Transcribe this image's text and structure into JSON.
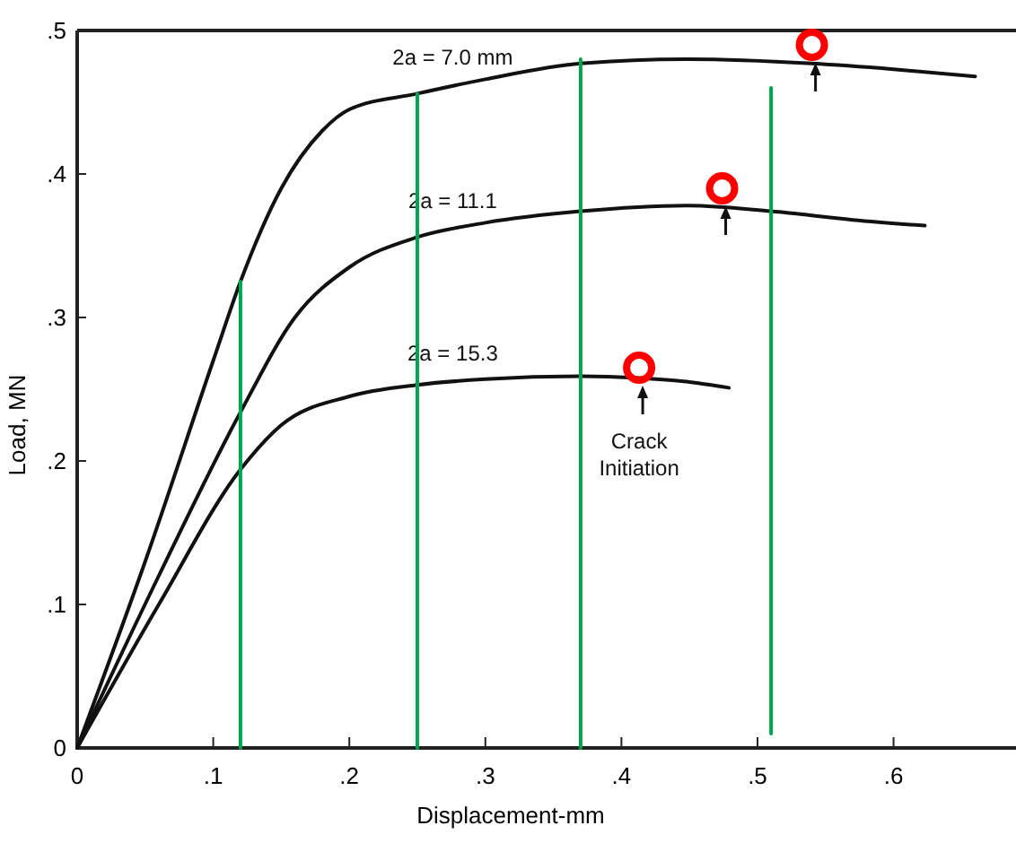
{
  "chart_data": {
    "type": "line",
    "xlabel": "Displacement-mm",
    "ylabel": "Load, MN",
    "xlim": [
      0,
      0.69
    ],
    "ylim": [
      0,
      0.5
    ],
    "xticks": [
      0,
      {
        "value": 0.1,
        "label": ".1"
      },
      {
        "value": 0.2,
        "label": ".2"
      },
      {
        "value": 0.3,
        "label": ".3"
      },
      {
        "value": 0.4,
        "label": ".4"
      },
      {
        "value": 0.5,
        "label": ".5"
      },
      {
        "value": 0.6,
        "label": ".6"
      }
    ],
    "yticks": [
      0,
      {
        "value": 0.1,
        "label": ".1"
      },
      {
        "value": 0.2,
        "label": ".2"
      },
      {
        "value": 0.3,
        "label": ".3"
      },
      {
        "value": 0.4,
        "label": ".4"
      },
      {
        "value": 0.5,
        "label": ".5"
      }
    ],
    "grid": false,
    "marker": "none",
    "line_style": "solid",
    "series": [
      {
        "name": "2a = 7.0 mm",
        "color": "#111111",
        "x": [
          0,
          0.05,
          0.1,
          0.12,
          0.15,
          0.18,
          0.2,
          0.25,
          0.3,
          0.37,
          0.45,
          0.54,
          0.6,
          0.66
        ],
        "values": [
          0,
          0.13,
          0.27,
          0.325,
          0.39,
          0.43,
          0.445,
          0.456,
          0.466,
          0.477,
          0.48,
          0.477,
          0.473,
          0.468
        ]
      },
      {
        "name": "2a = 11.1",
        "color": "#111111",
        "x": [
          0,
          0.06,
          0.12,
          0.16,
          0.2,
          0.25,
          0.3,
          0.37,
          0.45,
          0.51,
          0.57,
          0.623
        ],
        "values": [
          0,
          0.12,
          0.234,
          0.3,
          0.335,
          0.356,
          0.366,
          0.374,
          0.378,
          0.374,
          0.368,
          0.364
        ]
      },
      {
        "name": "2a = 15.3",
        "color": "#111111",
        "x": [
          0,
          0.06,
          0.12,
          0.15,
          0.2,
          0.25,
          0.3,
          0.37,
          0.41,
          0.45,
          0.479
        ],
        "values": [
          0,
          0.1,
          0.194,
          0.225,
          0.245,
          0.253,
          0.257,
          0.259,
          0.258,
          0.255,
          0.251
        ]
      },
      {
        "color": "#00a550",
        "x": [
          0.12,
          0.12
        ],
        "values": [
          0,
          0.325
        ]
      },
      {
        "color": "#00a550",
        "x": [
          0.25,
          0.25
        ],
        "values": [
          0,
          0.456
        ]
      },
      {
        "color": "#00a550",
        "x": [
          0.37,
          0.37
        ],
        "values": [
          0,
          0.48
        ]
      },
      {
        "color": "#00a550",
        "x": [
          0.51,
          0.51
        ],
        "values": [
          0.01,
          0.46
        ]
      },
      {
        "type": "scatter",
        "color": "#ff0000",
        "marker": "circle",
        "x": [
          0.54,
          0.474,
          0.413
        ],
        "values": [
          0.49,
          0.39,
          0.265
        ]
      }
    ],
    "annotations": [
      "Crack Initiation"
    ]
  }
}
